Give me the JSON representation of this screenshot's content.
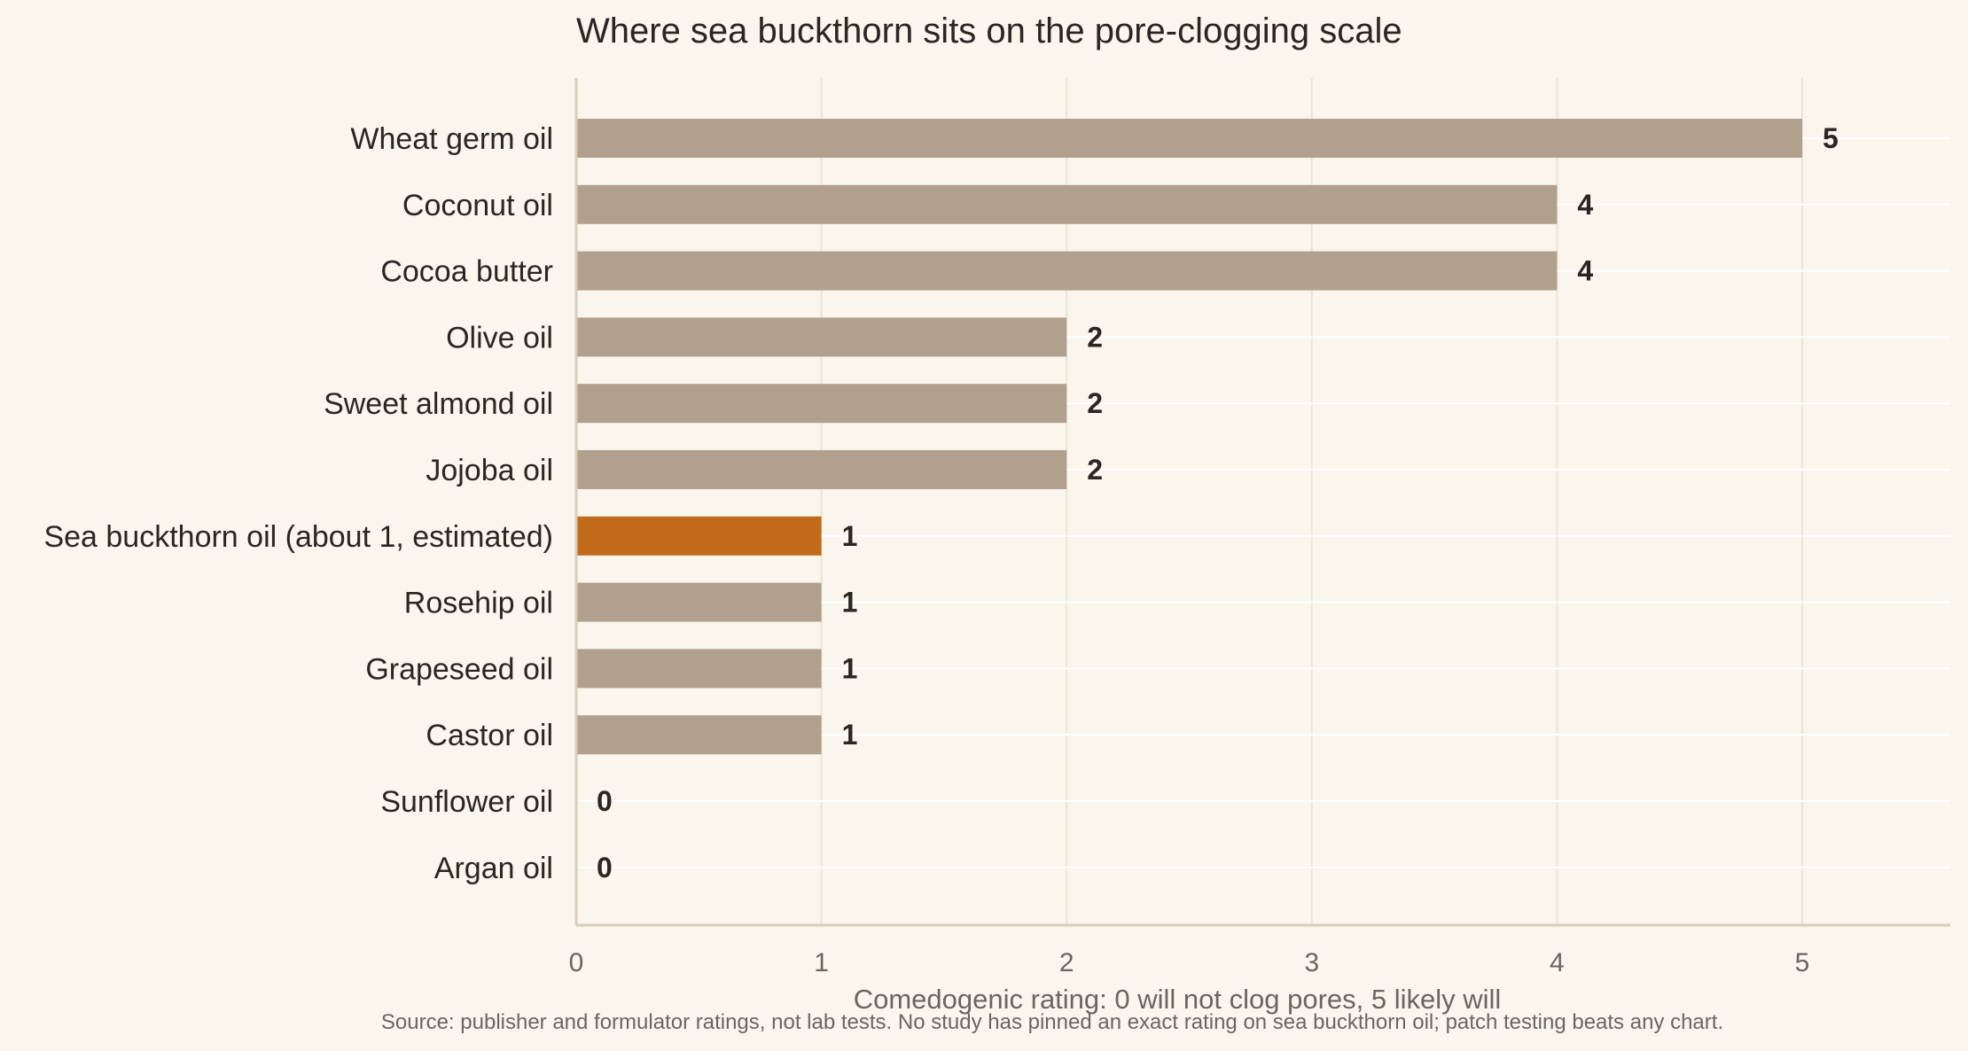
{
  "chart_data": {
    "type": "bar",
    "orientation": "horizontal",
    "title": "Where sea buckthorn sits on the pore-clogging scale",
    "xlabel": "Comedogenic rating: 0 will not clog pores, 5 likely will",
    "ylabel": "",
    "source": "Source: publisher and formulator ratings, not lab tests. No study has pinned an exact rating on sea buckthorn oil; patch testing beats any chart.",
    "categories": [
      "Wheat germ oil",
      "Coconut oil",
      "Cocoa butter",
      "Olive oil",
      "Sweet almond oil",
      "Jojoba oil",
      "Sea buckthorn oil  (about 1, estimated)",
      "Rosehip oil",
      "Grapeseed oil",
      "Castor oil",
      "Sunflower oil",
      "Argan oil"
    ],
    "values": [
      5,
      4,
      4,
      2,
      2,
      2,
      1,
      1,
      1,
      1,
      0,
      0
    ],
    "highlight_index": 6,
    "xlim": [
      0,
      5.6
    ],
    "xticks": [
      0,
      1,
      2,
      3,
      4,
      5
    ],
    "grid": true,
    "colors": {
      "bar": "#b0a08d",
      "highlight": "#c06a1b",
      "background": "#faf6ee",
      "grid": "#ece4d2",
      "axis": "#d8cdb5"
    }
  }
}
